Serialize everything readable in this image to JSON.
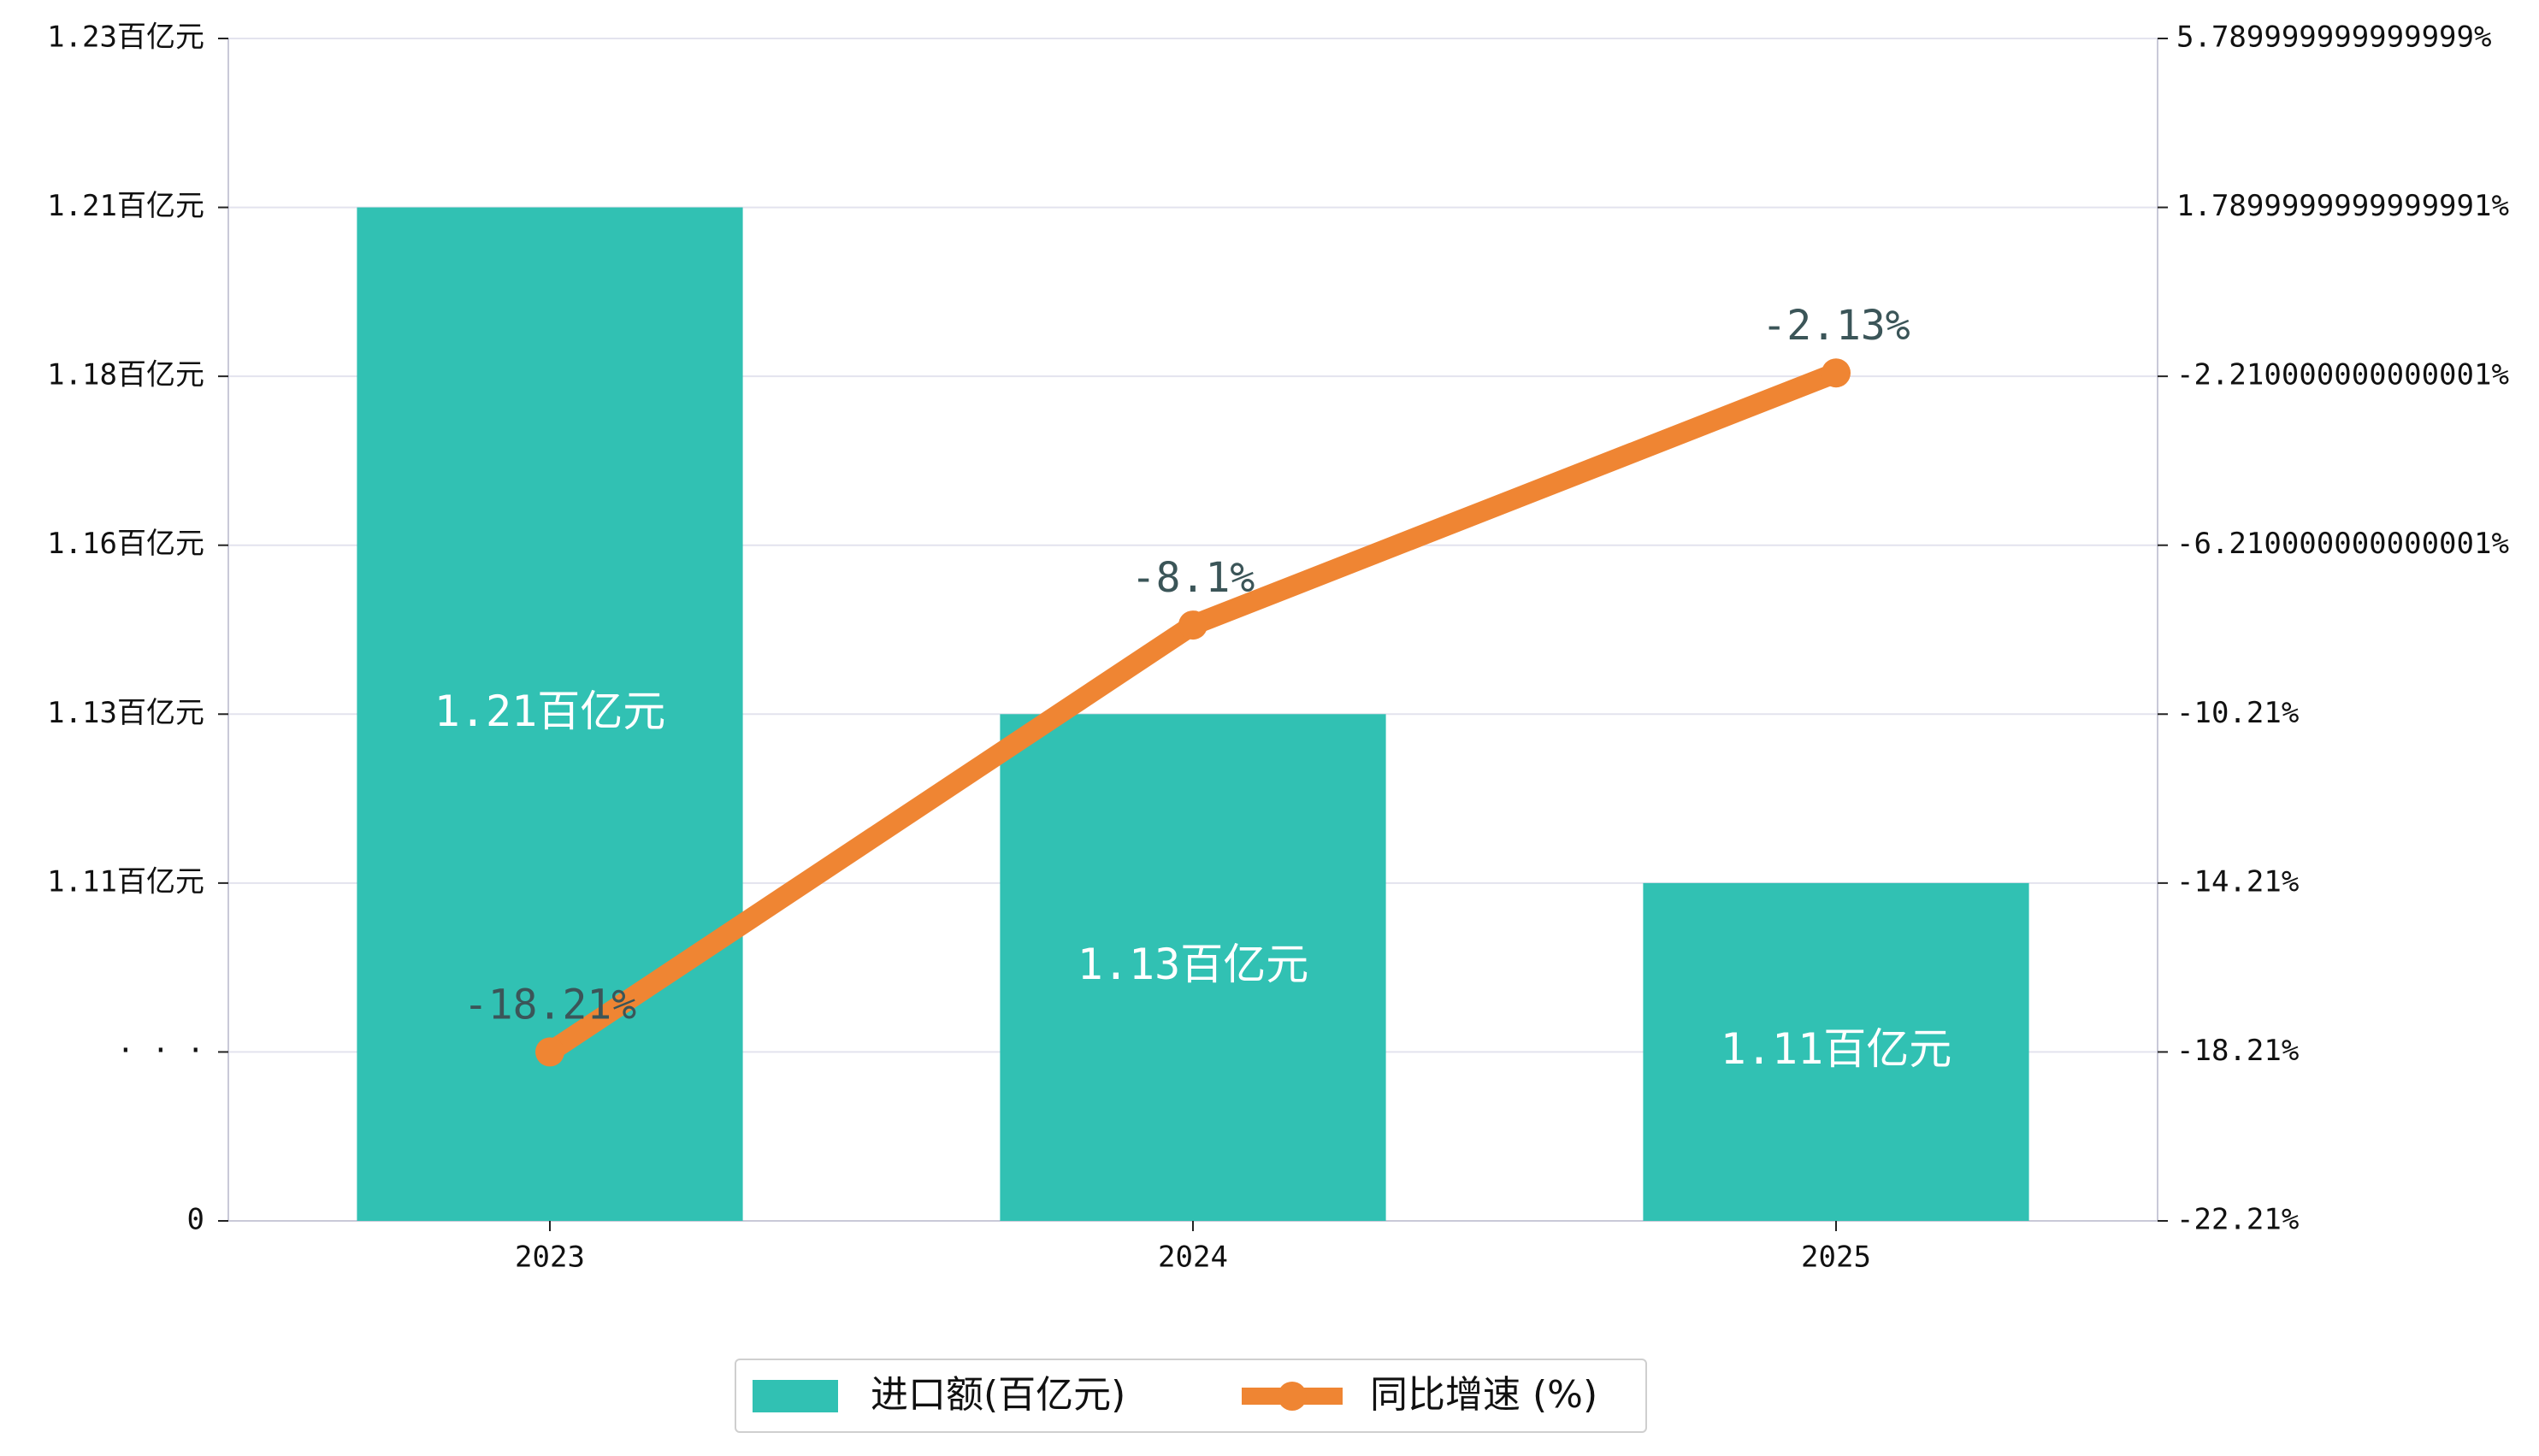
{
  "chart_data": {
    "type": "bar",
    "categories": [
      "2023",
      "2024",
      "2025"
    ],
    "series": [
      {
        "name": "进口额(百亿元)",
        "type": "bar",
        "axis": "left",
        "values": [
          1.21,
          1.13,
          1.11
        ],
        "labels": [
          "1.21百亿元",
          "1.13百亿元",
          "1.11百亿元"
        ],
        "color": "#31c1b3"
      },
      {
        "name": "同比增速 (%)",
        "type": "line",
        "axis": "right",
        "values": [
          -18.21,
          -8.1,
          -2.13
        ],
        "labels": [
          "-18.21%",
          "-8.1%",
          "-2.13%"
        ],
        "color": "#ef8533"
      }
    ],
    "left_axis": {
      "tick_labels": [
        "0",
        "· · ·",
        "1.11百亿元",
        "1.13百亿元",
        "1.16百亿元",
        "1.18百亿元",
        "1.21百亿元",
        "1.23百亿元"
      ],
      "broken": true,
      "scale_values": [
        1.09,
        1.11,
        1.13,
        1.16,
        1.18,
        1.21,
        1.23
      ]
    },
    "right_axis": {
      "ylim": [
        -22.21,
        5.79
      ],
      "tick_values": [
        -22.21,
        -18.21,
        -14.21,
        -10.21,
        -6.21,
        -2.21,
        1.79,
        5.79
      ],
      "tick_labels": [
        "-22.21%",
        "-18.21%",
        "-14.21%",
        "-10.21%",
        "-6.210000000000001%",
        "-2.210000000000001%",
        "1.7899999999999991%",
        "5.789999999999999%"
      ]
    },
    "grid": true,
    "legend_position": "bottom-center",
    "grid_color": "#e3e3ee",
    "axis_color": "#c9c9d8"
  }
}
